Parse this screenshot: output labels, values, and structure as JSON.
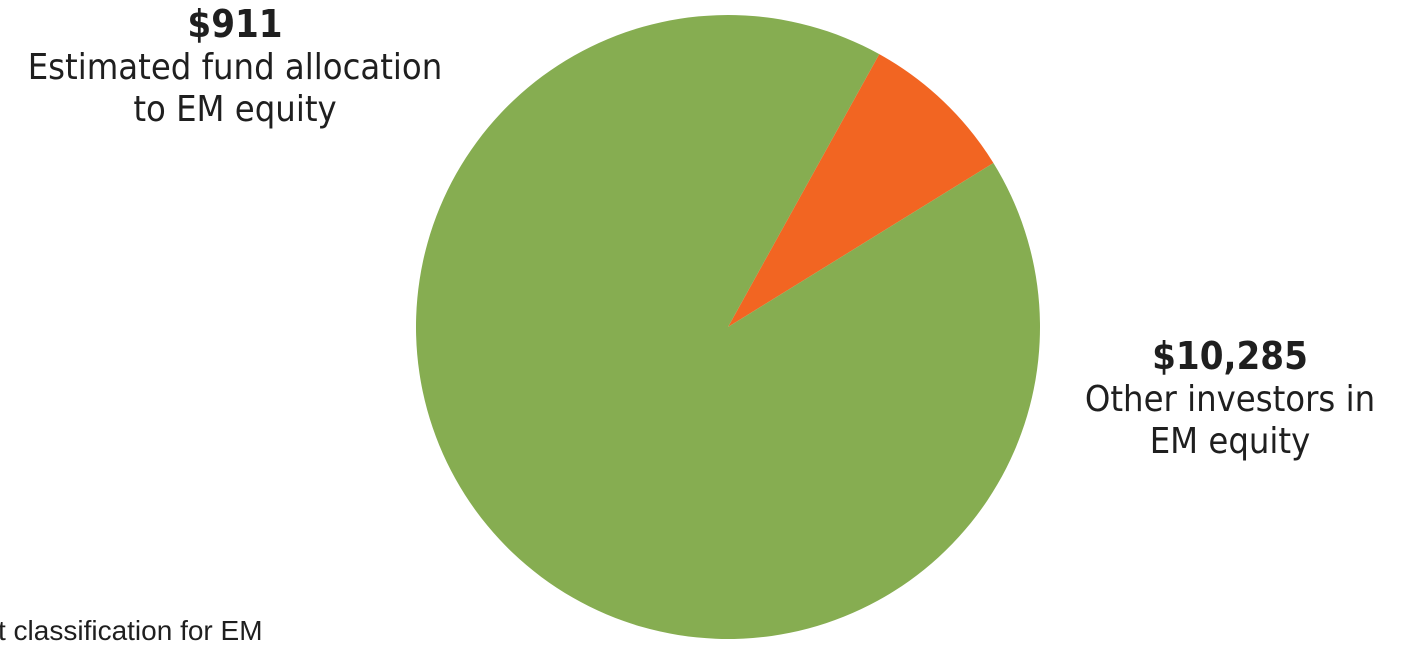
{
  "chart_data": {
    "type": "pie",
    "title": "",
    "slices": [
      {
        "value": 911,
        "value_label": "$911",
        "label_lines": [
          "Estimated fund allocation",
          "to EM equity"
        ],
        "color": "#f26522"
      },
      {
        "value": 10285,
        "value_label": "$10,285",
        "label_lines": [
          "Other investors in",
          "EM equity"
        ],
        "color": "#86ad51"
      }
    ],
    "start_angle_deg": -61.0,
    "legend": "none"
  },
  "footnote": "t classification for EM"
}
